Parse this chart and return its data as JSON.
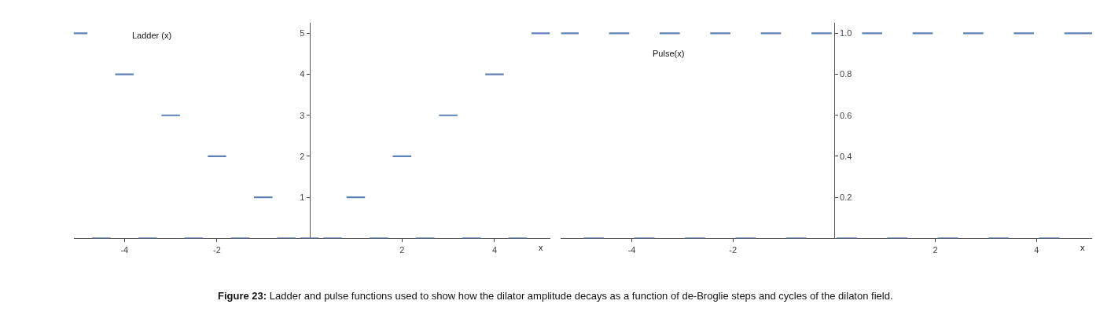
{
  "chart_data": [
    {
      "type": "line",
      "title": "Ladder (x)",
      "xlabel": "x",
      "xlim": [
        -5.1,
        5.2
      ],
      "xticks": [
        -4,
        -2,
        2,
        4
      ],
      "ylim": [
        0,
        5.25
      ],
      "yticks": [
        1,
        2,
        3,
        4,
        5
      ],
      "marker": "none",
      "line_style": "solid",
      "annotations": [
        "Figure 23: Ladder and pulse functions used to show how the dilator amplitude decays as a function of de-Broglie steps and cycles of the dilaton field."
      ],
      "series": [
        {
          "color": "#5e81b5",
          "x": [
            -5.1,
            -4.8,
            null,
            -4.7,
            -4.3,
            null,
            -4.2,
            -3.8,
            null,
            -3.7,
            -3.3,
            null,
            -3.2,
            -2.8,
            null,
            -2.7,
            -2.3,
            null,
            -2.2,
            -1.8,
            null,
            -1.7,
            -1.3,
            null,
            -1.2,
            -0.8,
            null,
            -0.7,
            -0.3,
            null,
            -0.2,
            0.2,
            null,
            0.3,
            0.7,
            null,
            0.8,
            1.2,
            null,
            1.3,
            1.7,
            null,
            1.8,
            2.2,
            null,
            2.3,
            2.7,
            null,
            2.8,
            3.2,
            null,
            3.3,
            3.7,
            null,
            3.8,
            4.2,
            null,
            4.3,
            4.7,
            null,
            4.8,
            5.2
          ],
          "values": [
            5,
            5,
            null,
            0,
            0,
            null,
            4,
            4,
            null,
            0,
            0,
            null,
            3,
            3,
            null,
            0,
            0,
            null,
            2,
            2,
            null,
            0,
            0,
            null,
            1,
            1,
            null,
            0,
            0,
            null,
            0,
            0,
            null,
            0,
            0,
            null,
            1,
            1,
            null,
            0,
            0,
            null,
            2,
            2,
            null,
            0,
            0,
            null,
            3,
            3,
            null,
            0,
            0,
            null,
            4,
            4,
            null,
            0,
            0,
            null,
            5,
            5
          ]
        }
      ]
    },
    {
      "type": "line",
      "title": "Pulse(x)",
      "xlabel": "x",
      "xlim": [
        -5.4,
        5.1
      ],
      "xticks": [
        -4,
        -2,
        2,
        4
      ],
      "ylim": [
        0,
        1.05
      ],
      "yticks": [
        0.2,
        0.4,
        0.6,
        0.8,
        {
          "value": 1.0,
          "label": "1.0"
        }
      ],
      "marker": "none",
      "line_style": "solid",
      "series": [
        {
          "color": "#5e81b5",
          "x": [
            -5.4,
            -5.05,
            null,
            -4.95,
            -4.55,
            null,
            -4.45,
            -4.05,
            null,
            -3.95,
            -3.55,
            null,
            -3.45,
            -3.05,
            null,
            -2.95,
            -2.55,
            null,
            -2.45,
            -2.05,
            null,
            -1.95,
            -1.55,
            null,
            -1.45,
            -1.05,
            null,
            -0.95,
            -0.55,
            null,
            -0.45,
            -0.05,
            null,
            0.05,
            0.45,
            null,
            0.55,
            0.95,
            null,
            1.05,
            1.45,
            null,
            1.55,
            1.95,
            null,
            2.05,
            2.45,
            null,
            2.55,
            2.95,
            null,
            3.05,
            3.45,
            null,
            3.55,
            3.95,
            null,
            4.05,
            4.45,
            null,
            4.55,
            5.1
          ],
          "values": [
            1,
            1,
            null,
            0,
            0,
            null,
            1,
            1,
            null,
            0,
            0,
            null,
            1,
            1,
            null,
            0,
            0,
            null,
            1,
            1,
            null,
            0,
            0,
            null,
            1,
            1,
            null,
            0,
            0,
            null,
            1,
            1,
            null,
            0,
            0,
            null,
            1,
            1,
            null,
            0,
            0,
            null,
            1,
            1,
            null,
            0,
            0,
            null,
            1,
            1,
            null,
            0,
            0,
            null,
            1,
            1,
            null,
            0,
            0,
            null,
            1,
            1
          ]
        }
      ]
    }
  ]
}
